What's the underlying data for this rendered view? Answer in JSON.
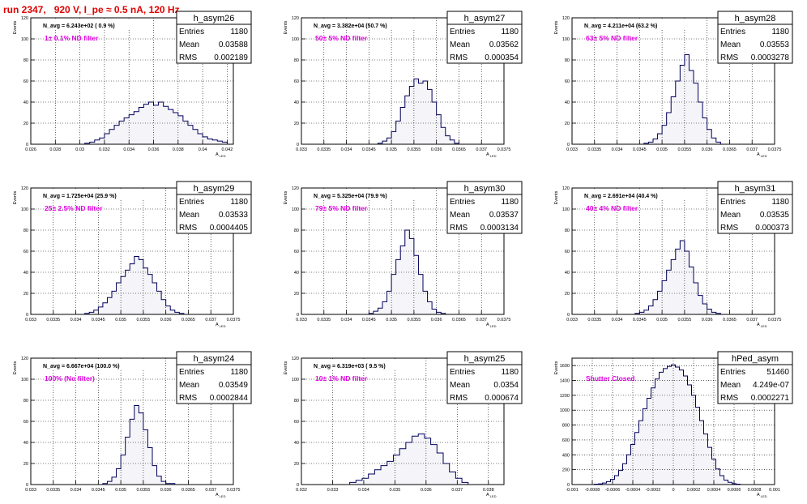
{
  "run_title": "run 2347,   920 V, I_pe ≈ 0.5 nA, 120 Hz",
  "colors": {
    "histogram": "#00005a",
    "filter_label": "#e000e0",
    "title": "#e00000",
    "grid": "#000000"
  },
  "stats_labels": {
    "entries": "Entries",
    "mean": "Mean",
    "rms": "RMS"
  },
  "chart_data": [
    {
      "type": "bar",
      "name": "h_asym26",
      "ylabel": "Events",
      "xlabel": "A_LED",
      "xlim": [
        0.026,
        0.0425
      ],
      "ylim": [
        0,
        120
      ],
      "xticks": [
        "0.026",
        "0.028",
        "0.03",
        "0.032",
        "0.034",
        "0.036",
        "0.038",
        "0.04",
        "0.042"
      ],
      "yticks": [
        "0",
        "20",
        "40",
        "60",
        "80",
        "100",
        "120"
      ],
      "navg": "N_avg = 6.243e+02 ( 0.9 %)",
      "filter": "1± 0.1% ND filter",
      "entries": "1180",
      "mean": "0.03588",
      "rms": "0.002189",
      "centers": [
        0.0306,
        0.031,
        0.0314,
        0.0318,
        0.0322,
        0.0326,
        0.033,
        0.0334,
        0.0338,
        0.0342,
        0.0346,
        0.035,
        0.0354,
        0.0358,
        0.0362,
        0.0366,
        0.037,
        0.0374,
        0.0378,
        0.0382,
        0.0386,
        0.039,
        0.0394,
        0.0398,
        0.0402,
        0.0406,
        0.041,
        0.0414,
        0.0418
      ],
      "values": [
        1,
        2,
        4,
        6,
        10,
        14,
        18,
        22,
        25,
        28,
        31,
        35,
        38,
        40,
        37,
        40,
        36,
        33,
        30,
        27,
        22,
        18,
        14,
        10,
        7,
        5,
        4,
        3,
        2
      ]
    },
    {
      "type": "bar",
      "name": "h_asym27",
      "ylabel": "Events",
      "xlabel": "A_LED",
      "xlim": [
        0.033,
        0.0375
      ],
      "ylim": [
        0,
        120
      ],
      "xticks": [
        "0.033",
        "0.0335",
        "0.034",
        "0.0345",
        "0.035",
        "0.0355",
        "0.036",
        "0.0365",
        "0.037",
        "0.0375"
      ],
      "yticks": [
        "0",
        "20",
        "40",
        "60",
        "80",
        "100",
        "120"
      ],
      "navg": "N_avg = 3.382e+04 (50.7 %)",
      "filter": "50± 5% ND filter",
      "entries": "1180",
      "mean": "0.03562",
      "rms": "0.000354",
      "centers": [
        0.03475,
        0.03485,
        0.03495,
        0.03505,
        0.03515,
        0.03525,
        0.03535,
        0.03545,
        0.03555,
        0.03565,
        0.03575,
        0.03585,
        0.03595,
        0.03605,
        0.03615,
        0.03625,
        0.03635,
        0.03645
      ],
      "values": [
        1,
        3,
        6,
        12,
        22,
        35,
        46,
        55,
        62,
        58,
        60,
        52,
        40,
        28,
        16,
        8,
        4,
        1
      ]
    },
    {
      "type": "bar",
      "name": "h_asym28",
      "ylabel": "Events",
      "xlabel": "A_LED",
      "xlim": [
        0.033,
        0.0375
      ],
      "ylim": [
        0,
        120
      ],
      "xticks": [
        "0.033",
        "0.0335",
        "0.034",
        "0.0345",
        "0.035",
        "0.0355",
        "0.036",
        "0.0365",
        "0.037",
        "0.0375"
      ],
      "yticks": [
        "0",
        "20",
        "40",
        "60",
        "80",
        "100",
        "120"
      ],
      "navg": "N_avg = 4.211e+04 (63.2 %)",
      "filter": "63± 5% ND filter",
      "entries": "1180",
      "mean": "0.03553",
      "rms": "0.0003278",
      "centers": [
        0.03465,
        0.03475,
        0.03485,
        0.03495,
        0.03505,
        0.03515,
        0.03525,
        0.03535,
        0.03545,
        0.03555,
        0.03565,
        0.03575,
        0.03585,
        0.03595,
        0.03605,
        0.03615,
        0.03625
      ],
      "values": [
        1,
        2,
        5,
        10,
        18,
        30,
        45,
        60,
        75,
        85,
        70,
        58,
        40,
        25,
        14,
        6,
        2
      ]
    },
    {
      "type": "bar",
      "name": "h_asym29",
      "ylabel": "Events",
      "xlabel": "A_LED",
      "xlim": [
        0.033,
        0.0375
      ],
      "ylim": [
        0,
        120
      ],
      "xticks": [
        "0.033",
        "0.0335",
        "0.034",
        "0.0345",
        "0.035",
        "0.0355",
        "0.036",
        "0.0365",
        "0.037",
        "0.0375"
      ],
      "yticks": [
        "0",
        "20",
        "40",
        "60",
        "80",
        "100",
        "120"
      ],
      "navg": "N_avg = 1.725e+04 (25.9 %)",
      "filter": "25± 2.5% ND filter",
      "entries": "1180",
      "mean": "0.03533",
      "rms": "0.0004405",
      "centers": [
        0.03425,
        0.03435,
        0.03445,
        0.03455,
        0.03465,
        0.03475,
        0.03485,
        0.03495,
        0.03505,
        0.03515,
        0.03525,
        0.03535,
        0.03545,
        0.03555,
        0.03565,
        0.03575,
        0.03585,
        0.03595,
        0.03605,
        0.03615,
        0.03625,
        0.03635
      ],
      "values": [
        1,
        2,
        4,
        7,
        11,
        16,
        22,
        30,
        36,
        42,
        48,
        55,
        52,
        44,
        38,
        30,
        22,
        14,
        8,
        4,
        2,
        1
      ]
    },
    {
      "type": "bar",
      "name": "h_asym30",
      "ylabel": "Events",
      "xlabel": "A_LED",
      "xlim": [
        0.033,
        0.0375
      ],
      "ylim": [
        0,
        120
      ],
      "xticks": [
        "0.033",
        "0.0335",
        "0.034",
        "0.0345",
        "0.035",
        "0.0355",
        "0.036",
        "0.0365",
        "0.037",
        "0.0375"
      ],
      "yticks": [
        "0",
        "20",
        "40",
        "60",
        "80",
        "100",
        "120"
      ],
      "navg": "N_avg = 5.325e+04 (79.9 %)",
      "filter": "79± 5% ND filter",
      "entries": "1180",
      "mean": "0.03537",
      "rms": "0.0003134",
      "centers": [
        0.03455,
        0.03465,
        0.03475,
        0.03485,
        0.03495,
        0.03505,
        0.03515,
        0.03525,
        0.03535,
        0.03545,
        0.03555,
        0.03565,
        0.03575,
        0.03585,
        0.03595,
        0.03605,
        0.03615
      ],
      "values": [
        1,
        3,
        6,
        12,
        22,
        38,
        52,
        65,
        80,
        72,
        56,
        38,
        22,
        12,
        5,
        2,
        1
      ]
    },
    {
      "type": "bar",
      "name": "h_asym31",
      "ylabel": "Events",
      "xlabel": "A_LED",
      "xlim": [
        0.033,
        0.0375
      ],
      "ylim": [
        0,
        120
      ],
      "xticks": [
        "0.033",
        "0.0335",
        "0.034",
        "0.0345",
        "0.035",
        "0.0355",
        "0.036",
        "0.0365",
        "0.037",
        "0.0375"
      ],
      "yticks": [
        "0",
        "20",
        "40",
        "60",
        "80",
        "100",
        "120"
      ],
      "navg": "N_avg = 2.691e+04 (40.4 %)",
      "filter": "40± 4% ND filter",
      "entries": "1180",
      "mean": "0.03535",
      "rms": "0.000373",
      "centers": [
        0.03445,
        0.03455,
        0.03465,
        0.03475,
        0.03485,
        0.03495,
        0.03505,
        0.03515,
        0.03525,
        0.03535,
        0.03545,
        0.03555,
        0.03565,
        0.03575,
        0.03585,
        0.03595,
        0.03605,
        0.03615,
        0.03625
      ],
      "values": [
        1,
        2,
        4,
        8,
        14,
        22,
        32,
        42,
        52,
        62,
        70,
        60,
        45,
        30,
        18,
        10,
        5,
        2,
        1
      ]
    },
    {
      "type": "bar",
      "name": "h_asym24",
      "ylabel": "Events",
      "xlabel": "A_LED",
      "xlim": [
        0.033,
        0.0375
      ],
      "ylim": [
        0,
        120
      ],
      "xticks": [
        "0.033",
        "0.0335",
        "0.034",
        "0.0345",
        "0.035",
        "0.0355",
        "0.036",
        "0.0365",
        "0.037",
        "0.0375"
      ],
      "yticks": [
        "0",
        "20",
        "40",
        "60",
        "80",
        "100",
        "120"
      ],
      "navg": "N_avg = 6.667e+04 (100.0 %)",
      "filter": "100% (No filter)",
      "entries": "1180",
      "mean": "0.03549",
      "rms": "0.0002844",
      "centers": [
        0.03465,
        0.03475,
        0.03485,
        0.03495,
        0.03505,
        0.03515,
        0.03525,
        0.03535,
        0.03545,
        0.03555,
        0.03565,
        0.03575,
        0.03585,
        0.03595,
        0.03605,
        0.03615
      ],
      "values": [
        1,
        3,
        7,
        15,
        28,
        45,
        62,
        75,
        68,
        52,
        35,
        18,
        8,
        3,
        1,
        1
      ]
    },
    {
      "type": "bar",
      "name": "h_asym25",
      "ylabel": "Events",
      "xlabel": "A_LED",
      "xlim": [
        0.032,
        0.0385
      ],
      "ylim": [
        0,
        120
      ],
      "xticks": [
        "0.032",
        "0.033",
        "0.034",
        "0.035",
        "0.036",
        "0.037",
        "0.038"
      ],
      "yticks": [
        "0",
        "20",
        "40",
        "60",
        "80",
        "100",
        "120"
      ],
      "navg": "N_avg = 6.319e+03 ( 9.5 %)",
      "filter": "10± 1% ND filter",
      "entries": "1180",
      "mean": "0.0354",
      "rms": "0.000674",
      "centers": [
        0.03365,
        0.03385,
        0.03405,
        0.03425,
        0.03445,
        0.03465,
        0.03485,
        0.03505,
        0.03525,
        0.03545,
        0.03565,
        0.03585,
        0.03605,
        0.03625,
        0.03645,
        0.03665,
        0.03685,
        0.03705,
        0.03725
      ],
      "values": [
        2,
        4,
        6,
        10,
        14,
        18,
        22,
        28,
        34,
        40,
        46,
        48,
        44,
        38,
        30,
        20,
        12,
        6,
        2
      ]
    },
    {
      "type": "bar",
      "name": "hPed_asym",
      "ylabel": "Events",
      "xlabel": "A_LED",
      "xlim": [
        -0.001,
        0.001
      ],
      "ylim": [
        0,
        1700
      ],
      "xticks": [
        "-0.001",
        "-0.0008",
        "-0.0006",
        "-0.0004",
        "-0.0002",
        "0",
        "0.0002",
        "0.0004",
        "0.0006",
        "0.0008",
        "0.001"
      ],
      "yticks": [
        "0",
        "200",
        "400",
        "600",
        "800",
        "1000",
        "1200",
        "1400",
        "1600"
      ],
      "navg": "",
      "filter": "Shutter Closed",
      "entries": "51460",
      "mean": "4.249e-07",
      "rms": "0.0002271",
      "centers": [
        -0.00076,
        -0.00072,
        -0.00068,
        -0.00064,
        -0.0006,
        -0.00056,
        -0.00052,
        -0.00048,
        -0.00044,
        -0.0004,
        -0.00036,
        -0.00032,
        -0.00028,
        -0.00024,
        -0.0002,
        -0.00016,
        -0.00012,
        -8e-05,
        -4e-05,
        0.0,
        4e-05,
        8e-05,
        0.00012,
        0.00016,
        0.0002,
        0.00024,
        0.00028,
        0.00032,
        0.00036,
        0.0004,
        0.00044,
        0.00048,
        0.00052,
        0.00056,
        0.0006,
        0.00064
      ],
      "values": [
        5,
        10,
        20,
        40,
        70,
        120,
        190,
        280,
        400,
        540,
        700,
        860,
        1020,
        1160,
        1300,
        1420,
        1510,
        1560,
        1590,
        1610,
        1580,
        1540,
        1460,
        1340,
        1200,
        1040,
        860,
        680,
        500,
        340,
        210,
        120,
        60,
        30,
        12,
        5
      ]
    }
  ]
}
